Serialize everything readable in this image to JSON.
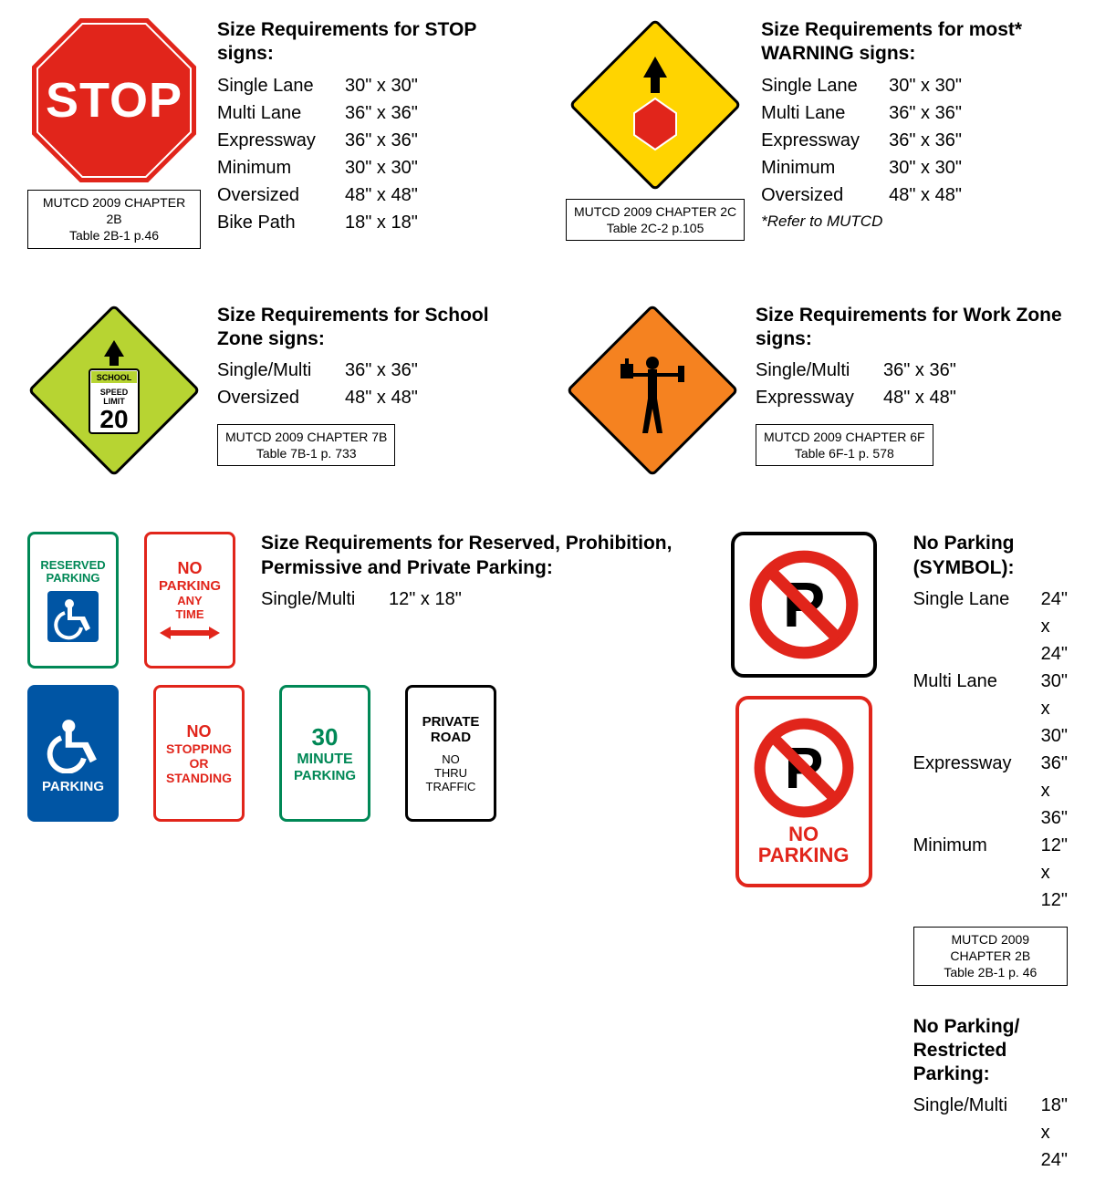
{
  "colors": {
    "red": "#e1251b",
    "yellow": "#ffd400",
    "school_green": "#b7d432",
    "orange": "#f58220",
    "blue": "#0055a4",
    "green_text": "#008856",
    "black": "#000000",
    "white": "#ffffff"
  },
  "stop": {
    "title": "Size Requirements for STOP signs:",
    "sign_text": "STOP",
    "ref1": "MUTCD 2009 CHAPTER 2B",
    "ref2": "Table 2B-1  p.46",
    "rows": [
      {
        "label": "Single Lane",
        "val": "30\" x 30\""
      },
      {
        "label": "Multi Lane",
        "val": "36\" x 36\""
      },
      {
        "label": "Expressway",
        "val": "36\" x 36\""
      },
      {
        "label": "Minimum",
        "val": "30\" x 30\""
      },
      {
        "label": "Oversized",
        "val": "48\" x 48\""
      },
      {
        "label": "Bike Path",
        "val": "18\" x 18\""
      }
    ]
  },
  "warning": {
    "title": "Size Requirements for most* WARNING signs:",
    "ref1": "MUTCD 2009 CHAPTER 2C",
    "ref2": "Table 2C-2 p.105",
    "footnote": "*Refer to MUTCD",
    "rows": [
      {
        "label": "Single Lane",
        "val": "30\" x 30\""
      },
      {
        "label": "Multi Lane",
        "val": "36\" x 36\""
      },
      {
        "label": "Expressway",
        "val": "36\" x 36\""
      },
      {
        "label": "Minimum",
        "val": "30\" x 30\""
      },
      {
        "label": "Oversized",
        "val": "48\" x 48\""
      }
    ]
  },
  "school": {
    "title": "Size Requirements for School Zone signs:",
    "ref1": "MUTCD 2009 CHAPTER 7B",
    "ref2": "Table 7B-1  p. 733",
    "sign_school": "SCHOOL",
    "sign_speed": "SPEED LIMIT",
    "sign_num": "20",
    "rows": [
      {
        "label": "Single/Multi",
        "val": "36\" x 36\""
      },
      {
        "label": "Oversized",
        "val": "48\" x 48\""
      }
    ]
  },
  "workzone": {
    "title": "Size Requirements for Work Zone signs:",
    "ref1": "MUTCD 2009 CHAPTER 6F",
    "ref2": "Table 6F-1  p. 578",
    "rows": [
      {
        "label": "Single/Multi",
        "val": "36\" x 36\""
      },
      {
        "label": "Expressway",
        "val": "48\" x 48\""
      }
    ]
  },
  "parking": {
    "title": "Size Requirements for Reserved, Prohibition, Permissive and Private Parking:",
    "row_label": "Single/Multi",
    "row_val": "12\" x 18\"",
    "signs": {
      "reserved": {
        "line1": "RESERVED",
        "line2": "PARKING",
        "color": "#008856"
      },
      "noparking": {
        "line1": "NO",
        "line2": "PARKING",
        "line3": "ANY",
        "line4": "TIME",
        "color": "#e1251b"
      },
      "handicap": {
        "text": "PARKING",
        "color": "#0055a4"
      },
      "nostopping": {
        "line1": "NO",
        "line2": "STOPPING",
        "line3": "OR",
        "line4": "STANDING",
        "color": "#e1251b"
      },
      "thirty": {
        "line1": "30",
        "line2": "MINUTE",
        "line3": "PARKING",
        "color": "#008856"
      },
      "private": {
        "line1": "PRIVATE",
        "line2": "ROAD",
        "line3": "NO",
        "line4": "THRU",
        "line5": "TRAFFIC",
        "color": "#000000"
      }
    }
  },
  "noparking_symbol": {
    "title": "No Parking (SYMBOL):",
    "ref1": "MUTCD 2009 CHAPTER 2B",
    "ref2": "Table 2B-1  p. 46",
    "rows": [
      {
        "label": "Single Lane",
        "val": "24\" x 24\""
      },
      {
        "label": "Multi Lane",
        "val": "30\" x 30\""
      },
      {
        "label": "Expressway",
        "val": "36\" x 36\""
      },
      {
        "label": "Minimum",
        "val": "12\" x 12\""
      }
    ]
  },
  "noparking_rect": {
    "text": "NO PARKING",
    "title": "No Parking/ Restricted Parking:",
    "row_label": "Single/Multi",
    "row_val": "18\" x 24\""
  }
}
